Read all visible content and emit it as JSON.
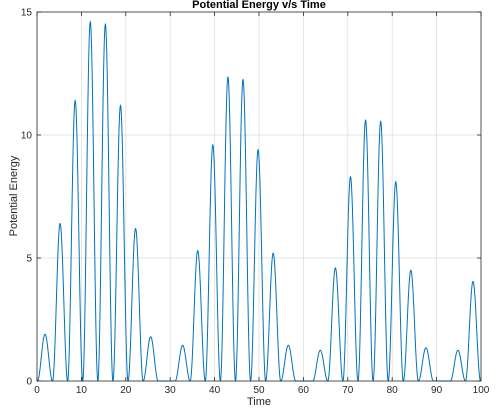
{
  "chart_data": {
    "type": "line",
    "title": "Potential Energy v/s Time",
    "xlabel": "Time",
    "ylabel": "Potential Energy",
    "xlim": [
      0,
      100
    ],
    "ylim": [
      0,
      15
    ],
    "xticks": [
      0,
      10,
      20,
      30,
      40,
      50,
      60,
      70,
      80,
      90,
      100
    ],
    "yticks": [
      0,
      5,
      10,
      15
    ],
    "grid": true,
    "legend": "none",
    "line_color": "#0072BD",
    "series": [
      {
        "peaks": [
          {
            "t": 1.8,
            "e": 1.9
          },
          {
            "t": 5.2,
            "e": 6.4
          },
          {
            "t": 8.6,
            "e": 11.4
          },
          {
            "t": 12.0,
            "e": 14.6
          },
          {
            "t": 15.4,
            "e": 14.5
          },
          {
            "t": 18.8,
            "e": 11.2
          },
          {
            "t": 22.2,
            "e": 6.2
          },
          {
            "t": 25.6,
            "e": 1.8
          },
          {
            "t": 32.8,
            "e": 1.45
          },
          {
            "t": 36.2,
            "e": 5.3
          },
          {
            "t": 39.6,
            "e": 9.6
          },
          {
            "t": 43.0,
            "e": 12.35
          },
          {
            "t": 46.4,
            "e": 12.25
          },
          {
            "t": 49.8,
            "e": 9.4
          },
          {
            "t": 53.2,
            "e": 5.2
          },
          {
            "t": 56.6,
            "e": 1.45
          },
          {
            "t": 63.8,
            "e": 1.25
          },
          {
            "t": 67.2,
            "e": 4.6
          },
          {
            "t": 70.6,
            "e": 8.3
          },
          {
            "t": 74.0,
            "e": 10.6
          },
          {
            "t": 77.4,
            "e": 10.55
          },
          {
            "t": 80.8,
            "e": 8.1
          },
          {
            "t": 84.2,
            "e": 4.5
          },
          {
            "t": 87.6,
            "e": 1.35
          },
          {
            "t": 94.8,
            "e": 1.25
          },
          {
            "t": 98.2,
            "e": 4.05
          }
        ],
        "half_period": 3.4
      }
    ]
  }
}
